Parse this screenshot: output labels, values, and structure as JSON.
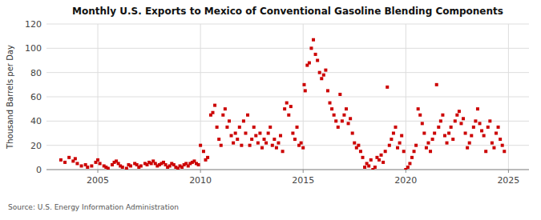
{
  "chart_data": {
    "type": "scatter",
    "title": "Monthly U.S. Exports to Mexico of Conventional Gasoline Blending Components",
    "ylabel": "Thousand Barrels per Day",
    "source": "Source: U.S. Energy Information Administration",
    "color": "#cc0000",
    "marker": "square",
    "grid": true,
    "xlim": [
      2002.5,
      2026.0
    ],
    "xticks": [
      2005,
      2010,
      2015,
      2020,
      2025
    ],
    "ylim": [
      0,
      120
    ],
    "yticks": [
      0,
      20,
      40,
      60,
      80,
      100,
      120
    ],
    "x": [
      2003.2,
      2003.4,
      2003.6,
      2003.8,
      2003.9,
      2004.0,
      2004.2,
      2004.4,
      2004.5,
      2004.7,
      2004.9,
      2005.0,
      2005.1,
      2005.3,
      2005.4,
      2005.5,
      2005.7,
      2005.8,
      2005.9,
      2006.0,
      2006.1,
      2006.2,
      2006.4,
      2006.5,
      2006.6,
      2006.8,
      2006.9,
      2007.0,
      2007.1,
      2007.3,
      2007.4,
      2007.5,
      2007.6,
      2007.7,
      2007.8,
      2007.9,
      2008.0,
      2008.1,
      2008.2,
      2008.3,
      2008.4,
      2008.5,
      2008.6,
      2008.7,
      2008.8,
      2008.9,
      2009.0,
      2009.1,
      2009.2,
      2009.3,
      2009.4,
      2009.5,
      2009.6,
      2009.7,
      2009.8,
      2009.9,
      2010.0,
      2010.15,
      2010.25,
      2010.35,
      2010.5,
      2010.6,
      2010.7,
      2010.8,
      2010.9,
      2011.0,
      2011.1,
      2011.2,
      2011.3,
      2011.4,
      2011.5,
      2011.6,
      2011.7,
      2011.8,
      2011.9,
      2012.0,
      2012.1,
      2012.2,
      2012.3,
      2012.4,
      2012.5,
      2012.6,
      2012.7,
      2012.8,
      2012.9,
      2013.0,
      2013.1,
      2013.2,
      2013.3,
      2013.4,
      2013.5,
      2013.6,
      2013.7,
      2013.8,
      2013.9,
      2014.0,
      2014.1,
      2014.2,
      2014.3,
      2014.4,
      2014.5,
      2014.6,
      2014.7,
      2014.8,
      2014.9,
      2015.0,
      2015.05,
      2015.1,
      2015.2,
      2015.3,
      2015.4,
      2015.5,
      2015.6,
      2015.7,
      2015.8,
      2015.9,
      2016.0,
      2016.1,
      2016.2,
      2016.3,
      2016.4,
      2016.5,
      2016.6,
      2016.7,
      2016.8,
      2016.9,
      2017.0,
      2017.1,
      2017.2,
      2017.3,
      2017.4,
      2017.5,
      2017.6,
      2017.7,
      2017.8,
      2017.9,
      2018.0,
      2018.1,
      2018.2,
      2018.3,
      2018.4,
      2018.5,
      2018.6,
      2018.7,
      2018.8,
      2018.9,
      2019.0,
      2019.1,
      2019.2,
      2019.3,
      2019.4,
      2019.5,
      2019.6,
      2019.7,
      2019.8,
      2019.9,
      2020.0,
      2020.1,
      2020.2,
      2020.3,
      2020.4,
      2020.5,
      2020.6,
      2020.7,
      2020.8,
      2020.9,
      2021.0,
      2021.1,
      2021.2,
      2021.3,
      2021.4,
      2021.5,
      2021.6,
      2021.7,
      2021.8,
      2021.9,
      2022.0,
      2022.1,
      2022.2,
      2022.3,
      2022.4,
      2022.5,
      2022.6,
      2022.7,
      2022.8,
      2022.9,
      2023.0,
      2023.1,
      2023.2,
      2023.3,
      2023.4,
      2023.5,
      2023.6,
      2023.7,
      2023.8,
      2023.9,
      2024.0,
      2024.1,
      2024.2,
      2024.3,
      2024.4,
      2024.5,
      2024.6,
      2024.7,
      2024.8
    ],
    "values": [
      8,
      6,
      10,
      7,
      9,
      5,
      3,
      4,
      2,
      3,
      6,
      8,
      5,
      3,
      2,
      1,
      4,
      6,
      7,
      5,
      3,
      2,
      1,
      4,
      3,
      5,
      4,
      2,
      3,
      5,
      4,
      6,
      5,
      7,
      5,
      3,
      4,
      5,
      6,
      4,
      2,
      3,
      5,
      4,
      2,
      1,
      3,
      2,
      4,
      5,
      3,
      5,
      6,
      7,
      5,
      4,
      20,
      15,
      8,
      10,
      45,
      47,
      53,
      35,
      25,
      20,
      45,
      50,
      35,
      40,
      28,
      22,
      30,
      25,
      35,
      20,
      40,
      30,
      45,
      20,
      25,
      35,
      28,
      22,
      30,
      18,
      25,
      22,
      30,
      35,
      20,
      25,
      18,
      22,
      28,
      15,
      50,
      55,
      45,
      52,
      30,
      25,
      35,
      20,
      22,
      18,
      70,
      65,
      86,
      88,
      100,
      107,
      95,
      90,
      80,
      75,
      78,
      82,
      65,
      55,
      50,
      45,
      40,
      35,
      62,
      40,
      45,
      50,
      38,
      42,
      30,
      22,
      18,
      20,
      15,
      10,
      2,
      5,
      3,
      8,
      0,
      2,
      10,
      8,
      12,
      6,
      15,
      68,
      20,
      25,
      30,
      35,
      18,
      22,
      28,
      15,
      0,
      2,
      5,
      10,
      15,
      20,
      50,
      45,
      38,
      30,
      18,
      22,
      15,
      25,
      30,
      70,
      35,
      40,
      45,
      28,
      22,
      30,
      35,
      25,
      40,
      45,
      48,
      38,
      42,
      30,
      18,
      22,
      28,
      35,
      40,
      50,
      38,
      32,
      28,
      15,
      35,
      40,
      22,
      18,
      30,
      35,
      25,
      20,
      15
    ]
  }
}
